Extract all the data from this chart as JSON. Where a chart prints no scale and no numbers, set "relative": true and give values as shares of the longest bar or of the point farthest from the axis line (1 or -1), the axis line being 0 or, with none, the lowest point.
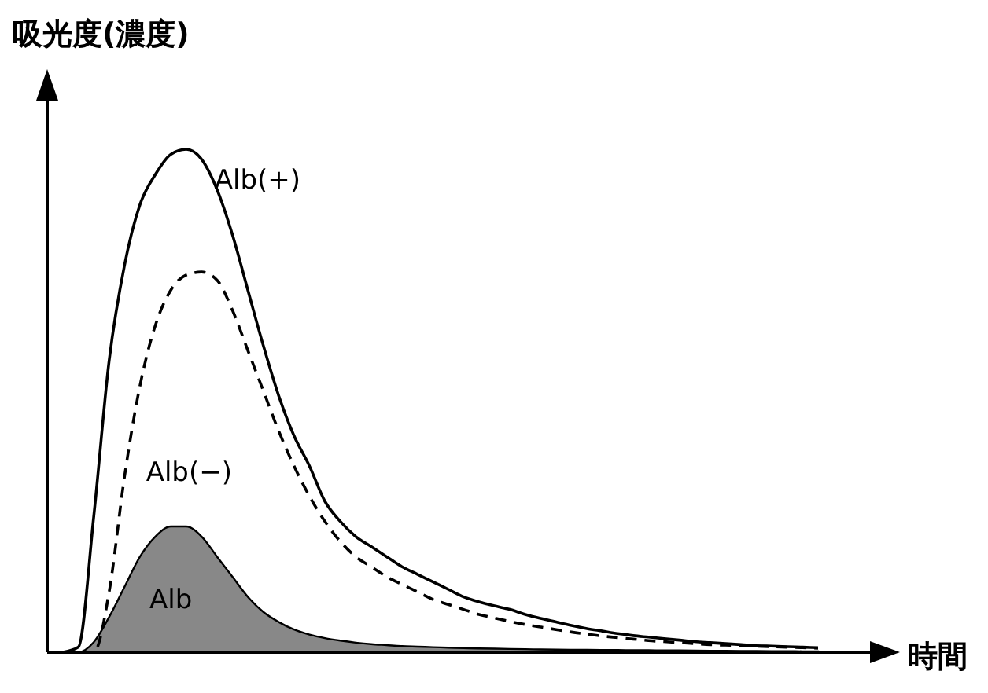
{
  "chart_data": {
    "type": "line",
    "relative": true,
    "ylabel": "吸光度(濃度)",
    "xlabel": "時間",
    "categories": [
      null,
      null,
      null,
      null,
      null,
      null,
      null,
      null,
      null,
      null,
      null,
      null,
      null,
      null,
      null,
      null,
      null,
      null,
      null,
      null,
      null,
      null,
      null,
      null,
      null,
      null,
      null,
      null,
      null,
      null,
      null,
      null,
      null,
      null,
      null,
      null,
      null,
      null,
      null,
      null,
      null,
      null,
      null,
      null,
      null,
      null,
      null,
      null,
      null,
      null
    ],
    "series": [
      {
        "name": "Alb(+)",
        "color": "#000000",
        "line_style": "solid",
        "values": [
          0,
          0.01,
          0.27,
          0.58,
          0.77,
          0.89,
          0.95,
          0.99,
          1,
          0.98,
          0.92,
          0.83,
          0.72,
          0.61,
          0.51,
          0.43,
          0.37,
          0.3,
          0.26,
          0.23,
          0.21,
          0.19,
          0.17,
          0.155,
          0.14,
          0.125,
          0.11,
          0.1,
          0.092,
          0.085,
          0.075,
          0.067,
          0.06,
          0.053,
          0.047,
          0.042,
          0.037,
          0.033,
          0.03,
          0.027,
          0.024,
          0.021,
          0.019,
          0.017,
          0.015,
          0.013,
          0.012,
          0.011,
          0.01,
          0.009
        ]
      },
      {
        "name": "Alb(−)",
        "color": "#000000",
        "line_style": "dashed",
        "values": [
          0,
          0,
          0,
          0.12,
          0.35,
          0.53,
          0.65,
          0.72,
          0.75,
          0.756,
          0.74,
          0.68,
          0.6,
          0.52,
          0.44,
          0.37,
          0.31,
          0.26,
          0.22,
          0.19,
          0.17,
          0.15,
          0.135,
          0.12,
          0.105,
          0.095,
          0.085,
          0.075,
          0.068,
          0.061,
          0.055,
          0.05,
          0.045,
          0.04,
          0.036,
          0.032,
          0.029,
          0.026,
          0.023,
          0.021,
          0.019,
          0.017,
          0.015,
          0.014,
          0.013,
          0.012,
          0.011,
          0.01,
          0.009,
          0.008
        ]
      },
      {
        "name": "Alb",
        "type": "area",
        "color": "#888888",
        "values": [
          0,
          0,
          0.02,
          0.07,
          0.13,
          0.19,
          0.23,
          0.25,
          0.25,
          0.23,
          0.19,
          0.15,
          0.11,
          0.08,
          0.06,
          0.045,
          0.035,
          0.028,
          0.023,
          0.019,
          0.016,
          0.014,
          0.012,
          0.011,
          0.01,
          0.009,
          0.008,
          0.0075,
          0.007,
          0.0065,
          0.006,
          0.0055,
          0.005,
          0.0048,
          0.0046,
          0.0044,
          0.0042,
          0.004,
          0.0038,
          0.0036,
          0.0034,
          0.0032,
          0.003,
          0.0028,
          0.0026,
          0.0024,
          0.0022,
          0.002,
          0.0018,
          0.0016
        ]
      }
    ]
  }
}
